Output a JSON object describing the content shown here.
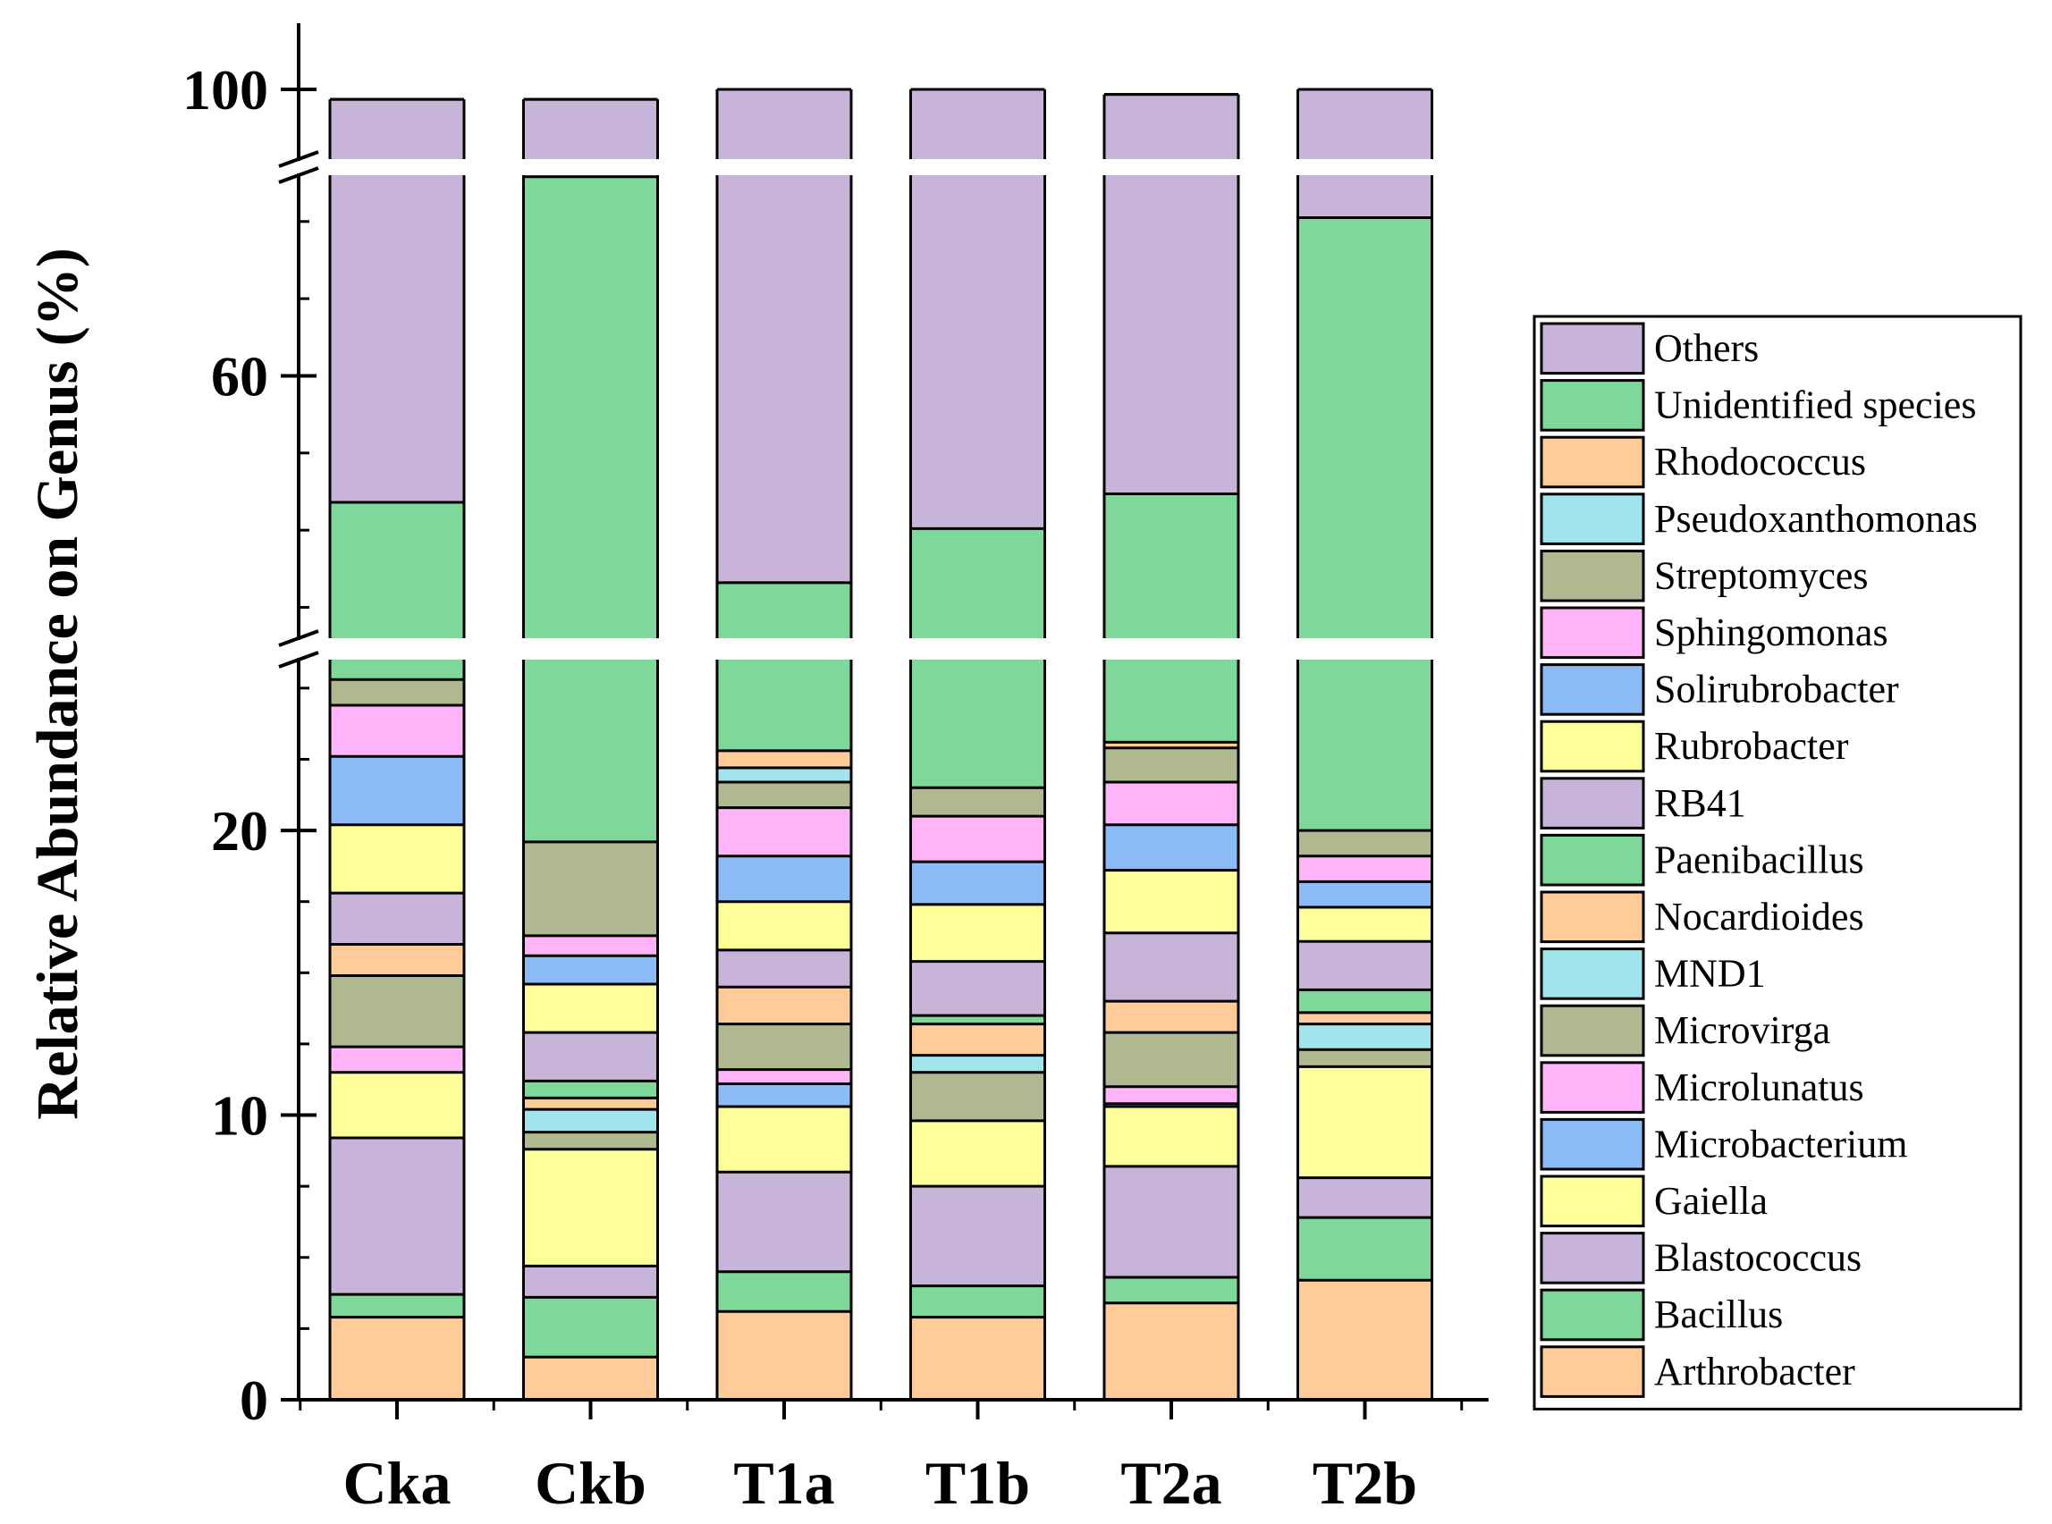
{
  "chart_data": {
    "type": "bar",
    "stacked": true,
    "broken_y_axis": true,
    "ylabel": "Relative Abundance on Genus (%)",
    "categories": [
      "Cka",
      "Ckb",
      "T1a",
      "T1b",
      "T2a",
      "T2b"
    ],
    "y_segments": [
      {
        "range": [
          0,
          26
        ],
        "ticks": [
          0,
          10,
          20
        ]
      },
      {
        "range": [
          26,
          86
        ],
        "ticks": [
          60
        ]
      },
      {
        "range": [
          86,
          100
        ],
        "ticks": [
          100
        ]
      }
    ],
    "series": [
      {
        "name": "Arthrobacter",
        "color": "#FFCC99",
        "values": [
          2.9,
          1.5,
          3.1,
          2.9,
          3.4,
          4.2
        ]
      },
      {
        "name": "Bacillus",
        "color": "#7DD89A",
        "values": [
          0.8,
          2.1,
          1.4,
          1.1,
          0.9,
          2.2
        ]
      },
      {
        "name": "Blastococcus",
        "color": "#C8B4D8",
        "values": [
          5.5,
          1.1,
          3.5,
          3.5,
          3.9,
          1.4
        ]
      },
      {
        "name": "Gaiella",
        "color": "#FFFF99",
        "values": [
          2.3,
          4.1,
          2.3,
          2.3,
          2.1,
          3.9
        ]
      },
      {
        "name": "Microbacterium",
        "color": "#8CBCF8",
        "values": [
          0,
          0,
          0.8,
          0,
          0.1,
          0
        ]
      },
      {
        "name": "Microlunatus",
        "color": "#FFB4F8",
        "values": [
          0.9,
          0,
          0.5,
          0,
          0.6,
          0
        ]
      },
      {
        "name": "Microvirga",
        "color": "#B0B890",
        "values": [
          2.5,
          0.6,
          1.6,
          1.7,
          1.9,
          0.6
        ]
      },
      {
        "name": "MND1",
        "color": "#A0E4EC",
        "values": [
          0,
          0.8,
          0,
          0.6,
          0,
          0.9
        ]
      },
      {
        "name": "Nocardioides",
        "color": "#FFCC99",
        "values": [
          1.1,
          0.4,
          1.3,
          1.1,
          1.1,
          0.4
        ]
      },
      {
        "name": "Paenibacillus",
        "color": "#7DD89A",
        "values": [
          0,
          0.6,
          0,
          0.3,
          0,
          0.8
        ]
      },
      {
        "name": "RB41",
        "color": "#C8B4D8",
        "values": [
          1.8,
          1.7,
          1.3,
          1.9,
          2.4,
          1.7
        ]
      },
      {
        "name": "Rubrobacter",
        "color": "#FFFF99",
        "values": [
          2.4,
          1.7,
          1.7,
          2.0,
          2.2,
          1.2
        ]
      },
      {
        "name": "Solirubrobacter",
        "color": "#8CBCF8",
        "values": [
          2.4,
          1.0,
          1.6,
          1.5,
          1.6,
          0.9
        ]
      },
      {
        "name": "Sphingomonas",
        "color": "#FFB4F8",
        "values": [
          1.8,
          0.7,
          1.7,
          1.6,
          1.5,
          0.9
        ]
      },
      {
        "name": "Streptomyces",
        "color": "#B0B890",
        "values": [
          0.9,
          3.3,
          0.9,
          1.0,
          1.2,
          0.9
        ]
      },
      {
        "name": "Pseudoxanthomonas",
        "color": "#A0E4EC",
        "values": [
          0,
          0,
          0.5,
          0,
          0,
          0
        ]
      },
      {
        "name": "Rhodococcus",
        "color": "#FFCC99",
        "values": [
          0,
          0,
          0.6,
          0,
          0.2,
          0
        ]
      },
      {
        "name": "Unidentified species",
        "color": "#7DD89A",
        "values": [
          18.3,
          66.2,
          10.4,
          18.7,
          21.6,
          60.5
        ]
      },
      {
        "name": "Others",
        "color": "#C8B4D8",
        "values": [
          54.4,
          12.2,
          67.3,
          60.8,
          54.3,
          22.5
        ]
      }
    ],
    "legend": {
      "position": "right",
      "order": [
        "Others",
        "Unidentified species",
        "Rhodococcus",
        "Pseudoxanthomonas",
        "Streptomyces",
        "Sphingomonas",
        "Solirubrobacter",
        "Rubrobacter",
        "RB41",
        "Paenibacillus",
        "Nocardioides",
        "MND1",
        "Microvirga",
        "Microlunatus",
        "Microbacterium",
        "Gaiella",
        "Blastococcus",
        "Bacillus",
        "Arthrobacter"
      ]
    }
  }
}
